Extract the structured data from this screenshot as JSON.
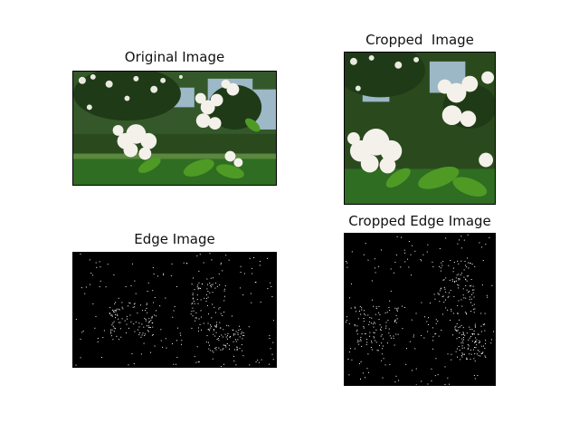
{
  "panels": [
    {
      "title": "Original Image"
    },
    {
      "title": "Cropped  Image"
    },
    {
      "title": "Edge Image"
    },
    {
      "title": "Cropped Edge Image"
    }
  ],
  "colors": {
    "sky": "#a9c3d8",
    "foliage_dark": "#1f3a17",
    "foliage_mid": "#3f6e2a",
    "leaf_bright": "#4f9a24",
    "grass": "#2f6d22",
    "blossom": "#f4f1ea",
    "edge_bg": "#000000",
    "edge_px": "#ffffff"
  }
}
